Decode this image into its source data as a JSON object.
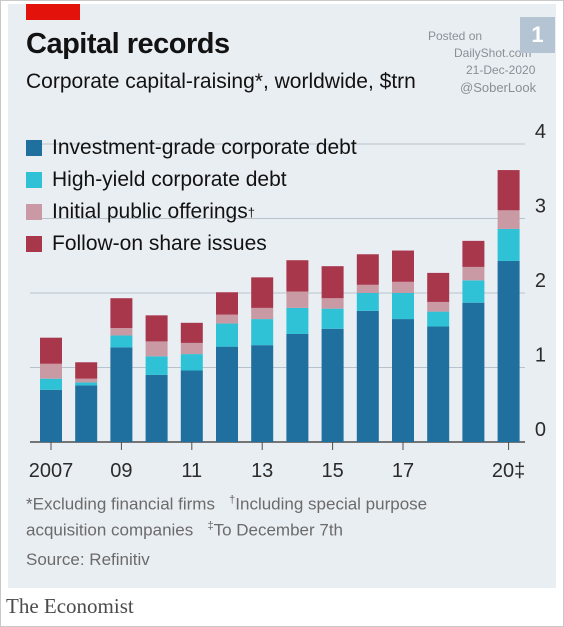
{
  "header": {
    "title": "Capital records",
    "subtitle": "Corporate capital-raising*, worldwide, $trn",
    "badge": "1"
  },
  "watermark": {
    "line1": "Posted on",
    "line2": "DailyShot.com",
    "line3": "21-Dec-2020",
    "line4": "@SoberLook"
  },
  "footnotes": {
    "line1_a": "*Excluding financial firms",
    "line1_b_mark": "†",
    "line1_b": "Including special purpose",
    "line2_a": "acquisition companies",
    "line2_b_mark": "‡",
    "line2_b": "To December 7th",
    "source": "Source: Refinitiv"
  },
  "brand": "The Economist",
  "colors": {
    "investment_grade": "#1f6f9f",
    "high_yield": "#2fc2d6",
    "ipo": "#c99aa4",
    "follow_on": "#a8374c",
    "gridline": "#b7c2cc",
    "brand_red": "#e3120b"
  },
  "chart_data": {
    "type": "bar",
    "stacked": true,
    "categories": [
      "2007",
      "2008",
      "2009",
      "2010",
      "2011",
      "2012",
      "2013",
      "2014",
      "2015",
      "2016",
      "2017",
      "2018",
      "2019",
      "2020"
    ],
    "x_tick_labels": [
      "2007",
      "",
      "09",
      "",
      "11",
      "",
      "13",
      "",
      "15",
      "",
      "17",
      "",
      "",
      "20‡"
    ],
    "series": [
      {
        "name": "Investment-grade corporate debt",
        "color": "#1f6f9f",
        "values": [
          0.7,
          0.76,
          1.27,
          0.9,
          0.96,
          1.28,
          1.3,
          1.45,
          1.52,
          1.76,
          1.65,
          1.55,
          1.87,
          2.43
        ]
      },
      {
        "name": "High-yield corporate debt",
        "color": "#2fc2d6",
        "values": [
          0.15,
          0.04,
          0.16,
          0.25,
          0.22,
          0.31,
          0.35,
          0.35,
          0.27,
          0.24,
          0.35,
          0.2,
          0.3,
          0.43
        ]
      },
      {
        "name": "Initial public offerings",
        "name_mark": "†",
        "color": "#c99aa4",
        "values": [
          0.2,
          0.05,
          0.1,
          0.2,
          0.15,
          0.12,
          0.15,
          0.22,
          0.14,
          0.11,
          0.15,
          0.13,
          0.18,
          0.25
        ]
      },
      {
        "name": "Follow-on share issues",
        "color": "#a8374c",
        "values": [
          0.35,
          0.22,
          0.4,
          0.35,
          0.27,
          0.3,
          0.41,
          0.42,
          0.43,
          0.41,
          0.42,
          0.39,
          0.35,
          0.54
        ]
      }
    ],
    "ylim": [
      0,
      4
    ],
    "y_ticks": [
      0,
      1,
      2,
      3,
      4
    ],
    "y_axis_side": "right",
    "grid": true,
    "legend": "top-left"
  }
}
